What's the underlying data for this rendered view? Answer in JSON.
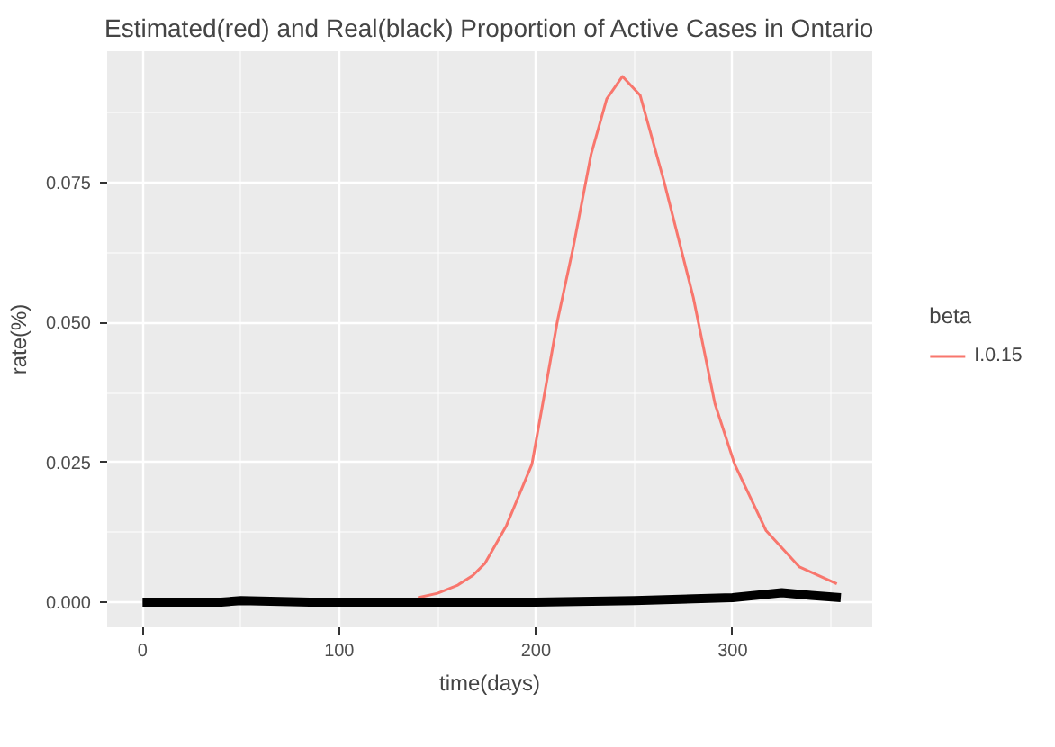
{
  "chart_data": {
    "type": "line",
    "title": "Estimated(red) and Real(black) Proportion of Active Cases in Ontario",
    "xlabel": "time(days)",
    "ylabel": "rate(%)",
    "legend_title": "beta",
    "legend": "right",
    "grid": true,
    "xlim": [
      -18,
      371
    ],
    "ylim": [
      -0.0045,
      0.0985
    ],
    "xticks": [
      0,
      100,
      200,
      300
    ],
    "yticks": [
      {
        "value": 0,
        "label": "0.000"
      },
      {
        "value": 0.025,
        "label": "0.025"
      },
      {
        "value": 0.05,
        "label": "0.050"
      },
      {
        "value": 0.075,
        "label": "0.075"
      }
    ],
    "series": [
      {
        "name": "I.0.15",
        "color": "#f8766d",
        "x": [
          140,
          150,
          160,
          168,
          174,
          185,
          198,
          211,
          219,
          228,
          236,
          244,
          253,
          265,
          280,
          291,
          301,
          317,
          334,
          353
        ],
        "values": [
          0.0008,
          0.0016,
          0.003,
          0.0048,
          0.0069,
          0.0137,
          0.0247,
          0.0504,
          0.0635,
          0.08,
          0.09,
          0.094,
          0.0906,
          0.0754,
          0.0545,
          0.0355,
          0.0247,
          0.0128,
          0.0063,
          0.0033
        ]
      },
      {
        "color": "#000000",
        "x": [
          0,
          40,
          50,
          60,
          75,
          85,
          100,
          150,
          200,
          250,
          300,
          325,
          340,
          355
        ],
        "values": [
          0,
          0,
          0.0003,
          0.0002,
          0.0001,
          0,
          0,
          0,
          0,
          0.0003,
          0.0008,
          0.0017,
          0.0012,
          0.0008
        ]
      }
    ]
  }
}
